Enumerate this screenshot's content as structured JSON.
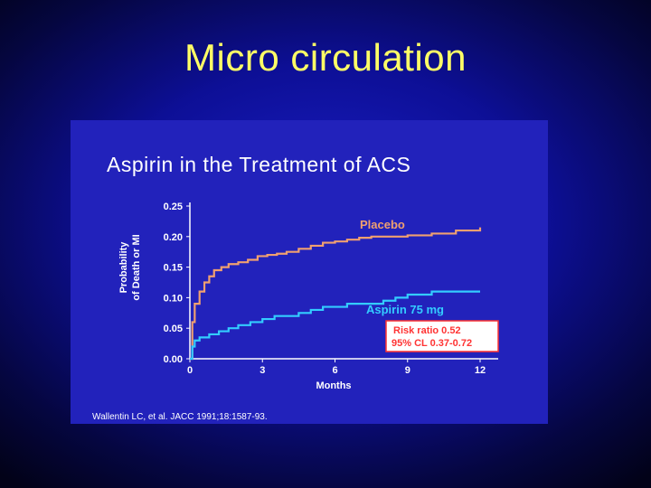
{
  "slide": {
    "title": "Micro circulation"
  },
  "chart_data": {
    "type": "line",
    "title": "Aspirin in the Treatment of ACS",
    "xlabel": "Months",
    "ylabel": "Probability of Death or MI",
    "ylabel_lines": [
      "Probability",
      "of Death or MI"
    ],
    "xlim": [
      0,
      12
    ],
    "ylim": [
      0,
      0.25
    ],
    "x_ticks": [
      "0",
      "3",
      "6",
      "9",
      "12"
    ],
    "y_ticks": [
      "0.00",
      "0.05",
      "0.10",
      "0.15",
      "0.20",
      "0.25"
    ],
    "grid": false,
    "series": [
      {
        "name": "Placebo",
        "color": "#f0a070",
        "x": [
          0,
          0.1,
          0.2,
          0.4,
          0.6,
          0.8,
          1.0,
          1.3,
          1.6,
          2.0,
          2.4,
          2.8,
          3.2,
          3.6,
          4.0,
          4.5,
          5.0,
          5.5,
          6.0,
          6.5,
          7.0,
          7.5,
          8.0,
          9.0,
          10.0,
          11.0,
          12.0
        ],
        "values": [
          0.0,
          0.06,
          0.09,
          0.11,
          0.125,
          0.135,
          0.145,
          0.15,
          0.155,
          0.158,
          0.162,
          0.168,
          0.17,
          0.172,
          0.175,
          0.18,
          0.185,
          0.19,
          0.192,
          0.195,
          0.198,
          0.2,
          0.2,
          0.202,
          0.205,
          0.21,
          0.215
        ]
      },
      {
        "name": "Aspirin 75 mg",
        "color": "#33ccff",
        "x": [
          0,
          0.1,
          0.2,
          0.4,
          0.8,
          1.2,
          1.6,
          2.0,
          2.5,
          3.0,
          3.5,
          4.0,
          4.5,
          5.0,
          5.5,
          6.0,
          6.5,
          7.0,
          7.5,
          8.0,
          8.5,
          9.0,
          10.0,
          11.0,
          12.0
        ],
        "values": [
          0.0,
          0.02,
          0.03,
          0.035,
          0.04,
          0.045,
          0.05,
          0.055,
          0.06,
          0.065,
          0.07,
          0.07,
          0.075,
          0.08,
          0.085,
          0.085,
          0.09,
          0.09,
          0.09,
          0.095,
          0.1,
          0.105,
          0.11,
          0.11,
          0.11
        ]
      }
    ],
    "annotation": {
      "lines": [
        "Risk ratio 0.52",
        "95% CL 0.37-0.72"
      ],
      "border_color": "#ff3333"
    },
    "source": "Wallentin LC, et al. JACC 1991;18:1587-93."
  }
}
